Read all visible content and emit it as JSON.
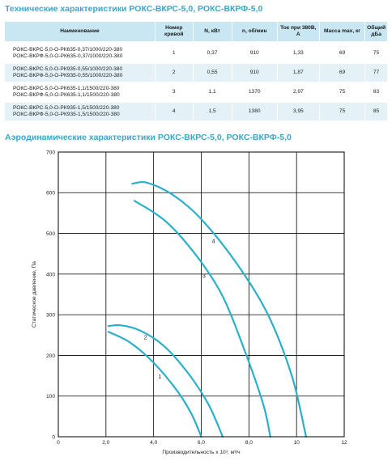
{
  "tech_title": "Технические характеристики РОКС-ВКРС-5,0, РОКС-ВКРФ-5,0",
  "aero_title": "Аэродинамические характеристики РОКС-ВКРС-5,0, РОКС-ВКРФ-5,0",
  "table": {
    "headers": [
      "Наименование",
      "Номер кривой",
      "N, кВт",
      "n, об/мин",
      "Ток при 380В, А",
      "Масса max, кг",
      "Общий дБа"
    ],
    "rows": [
      {
        "names": [
          "РОКС-ВКРС-5,0-О-РК635-0,37/1000/220-380",
          "РОКС-ВКРФ-5,0-О-РК635-0,37/1000/220-380"
        ],
        "curve": "1",
        "power": "0,37",
        "rpm": "910",
        "current": "1,33",
        "mass": "69",
        "noise": "75"
      },
      {
        "names": [
          "РОКС-ВКРС-5,0-О-РК935-0,55/1000/220-380",
          "РОКС-ВКРФ-5,0-О-РК935-0,55/1000/220-380"
        ],
        "curve": "2",
        "power": "0,55",
        "rpm": "910",
        "current": "1,87",
        "mass": "69",
        "noise": "77"
      },
      {
        "names": [
          "РОКС-ВКРС-5,0-О-РК635-1,1/1500/220-380",
          "РОКС-ВКРФ-5,0-О-РК635-1,1/1500/220-380"
        ],
        "curve": "3",
        "power": "1,1",
        "rpm": "1370",
        "current": "2,97",
        "mass": "75",
        "noise": "83"
      },
      {
        "names": [
          "РОКС-ВКРС-5,0-О-РК935-1,5/1500/220-380",
          "РОКС-ВКРФ-5,0-О-РК935-1,5/1500/220-380"
        ],
        "curve": "4",
        "power": "1,5",
        "rpm": "1380",
        "current": "3,95",
        "mass": "75",
        "noise": "85"
      }
    ]
  },
  "chart_data": {
    "type": "line",
    "title": "",
    "xlabel": "Производительность х 10³, м³/ч",
    "ylabel": "Статическое давление, Па",
    "xlim": [
      0,
      12
    ],
    "ylim": [
      0,
      700
    ],
    "xticks": [
      "0",
      "2,0",
      "4,0",
      "6,0",
      "8,0",
      "10",
      "12"
    ],
    "yticks": [
      "0",
      "100",
      "200",
      "300",
      "400",
      "500",
      "600",
      "700"
    ],
    "grid": true,
    "series": [
      {
        "name": "1",
        "x": [
          2.1,
          3.0,
          4.0,
          5.0,
          5.6,
          6.0
        ],
        "y": [
          258,
          232,
          182,
          112,
          55,
          0
        ]
      },
      {
        "name": "2",
        "x": [
          2.1,
          2.6,
          3.4,
          4.4,
          5.4,
          6.3,
          6.9
        ],
        "y": [
          272,
          274,
          262,
          225,
          160,
          80,
          0
        ]
      },
      {
        "name": "3",
        "x": [
          3.2,
          4.5,
          5.8,
          6.9,
          7.8,
          8.6,
          8.9
        ],
        "y": [
          580,
          530,
          445,
          345,
          215,
          80,
          0
        ]
      },
      {
        "name": "4",
        "x": [
          3.1,
          3.7,
          4.8,
          6.0,
          7.5,
          8.8,
          9.8,
          10.4
        ],
        "y": [
          622,
          625,
          595,
          535,
          425,
          300,
          150,
          0
        ]
      }
    ],
    "curve_color": "#2bb0c8"
  }
}
